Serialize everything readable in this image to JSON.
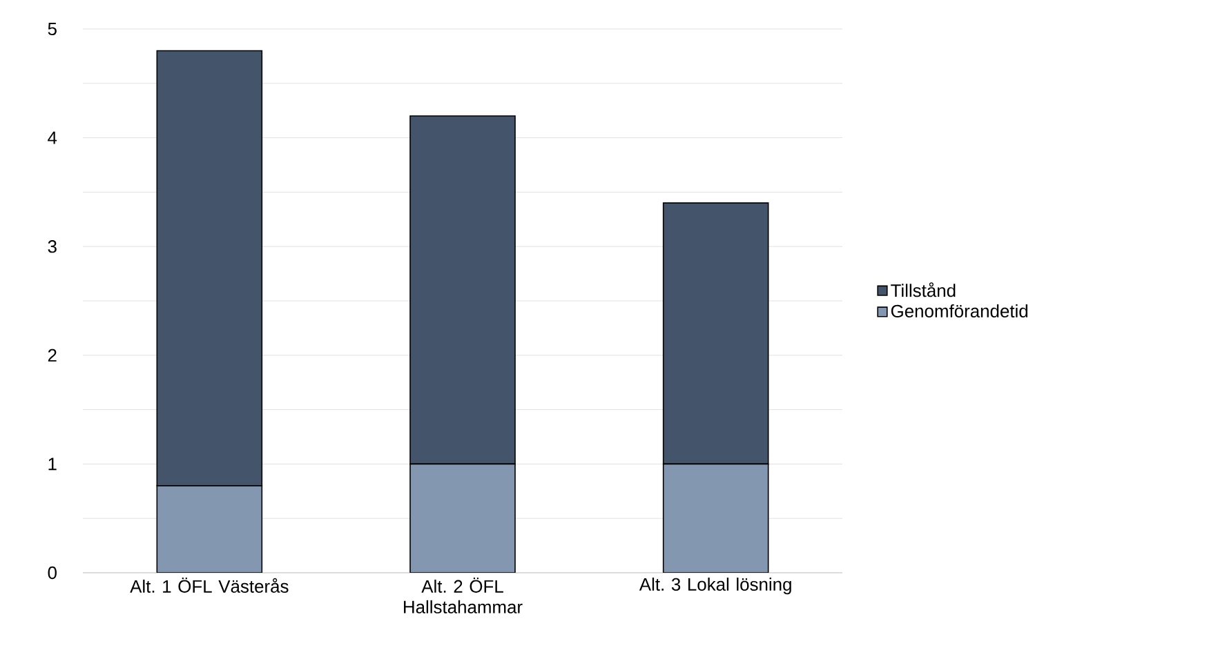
{
  "chart_data": {
    "type": "bar",
    "stacked": true,
    "categories": [
      "Alt. 1 ÖFL Västerås",
      "Alt. 2 ÖFL Hallstahammar",
      "Alt. 3 Lokal lösning"
    ],
    "series": [
      {
        "name": "Genomförandetid",
        "color": "#8497b0",
        "values": [
          0.8,
          1.0,
          1.0
        ]
      },
      {
        "name": "Tillstånd",
        "color": "#44546a",
        "values": [
          4.0,
          3.2,
          2.4
        ]
      }
    ],
    "ylim": [
      0,
      5
    ],
    "yticks": [
      0,
      {
        "value": 0.5,
        "label": null
      },
      1,
      {
        "value": 1.5,
        "label": null
      },
      2,
      {
        "value": 2.5,
        "label": null
      },
      3,
      {
        "value": 3.5,
        "label": null
      },
      4,
      {
        "value": 4.5,
        "label": null
      },
      5
    ],
    "grid": "y",
    "legend": "right"
  }
}
